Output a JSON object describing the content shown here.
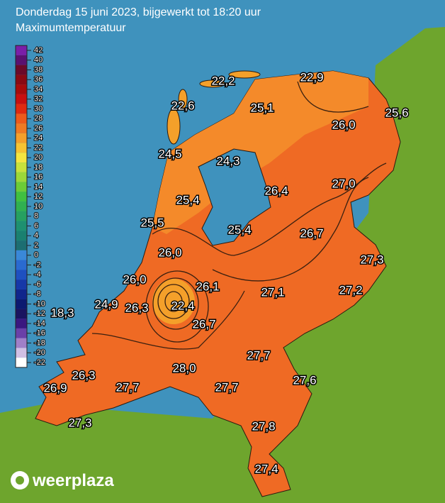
{
  "header": {
    "title": "Donderdag 15 juni 2023, bijgewerkt tot 18:20 uur",
    "subtitle": "Maximumtemperatuur"
  },
  "legend": {
    "ticks": [
      42,
      40,
      38,
      36,
      34,
      32,
      30,
      28,
      26,
      24,
      22,
      20,
      18,
      16,
      14,
      12,
      10,
      8,
      6,
      4,
      2,
      0,
      -2,
      -4,
      -6,
      -8,
      -10,
      -12,
      -14,
      -16,
      -18,
      -20,
      -22
    ],
    "colors": [
      "#7a1fa8",
      "#5a1170",
      "#6b0a2a",
      "#8a0a14",
      "#a80c0c",
      "#c81010",
      "#e02a10",
      "#ee5a1a",
      "#f07a22",
      "#f4a02a",
      "#f6c432",
      "#f4e640",
      "#c8e23c",
      "#9cd83a",
      "#6ccc38",
      "#40c040",
      "#30b050",
      "#26a060",
      "#1e9070",
      "#1a8070",
      "#1c6e72",
      "#3a88d8",
      "#2a6ad0",
      "#1e50c0",
      "#1638a8",
      "#10268c",
      "#0c1a70",
      "#1a1460",
      "#3a1880",
      "#6a40a8",
      "#a080c8",
      "#d0c0e4",
      "#ffffff"
    ]
  },
  "stations": [
    "22,2",
    "22,9",
    "22,6",
    "25,1",
    "25,6",
    "26,0",
    "24,5",
    "24,3",
    "26,4",
    "27,0",
    "25,4",
    "25,5",
    "25,4",
    "26,7",
    "26,0",
    "27,3",
    "26,0",
    "26,1",
    "27,1",
    "27,2",
    "24,9",
    "26,3",
    "22,4",
    "18,3",
    "26,7",
    "27,7",
    "28,0",
    "26,3",
    "27,6",
    "26,9",
    "27,7",
    "27,7",
    "27,3",
    "27,8",
    "27,4"
  ],
  "logo": "weerplaza"
}
